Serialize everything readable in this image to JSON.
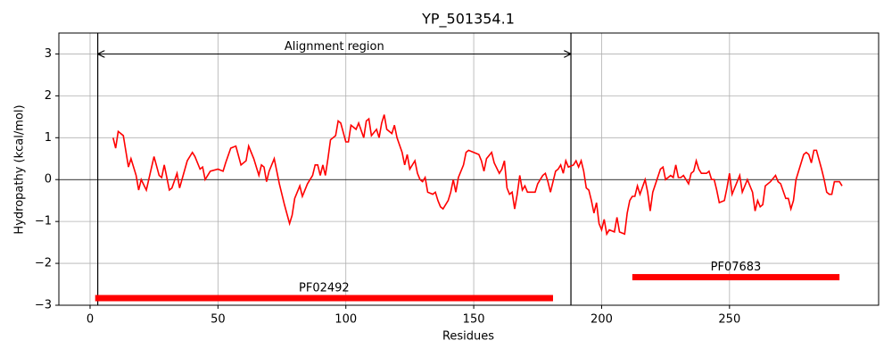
{
  "chart_data": {
    "type": "line",
    "title": "YP_501354.1",
    "xlabel": "Residues",
    "ylabel": "Hydropathy (kcal/mol)",
    "xlim": [
      -12.2,
      308.3
    ],
    "ylim": [
      -3,
      3.5
    ],
    "xticks": [
      0,
      50,
      100,
      150,
      200,
      250
    ],
    "yticks": [
      {
        "value": -3,
        "label": "−3"
      },
      {
        "value": -2,
        "label": "−2"
      },
      {
        "value": -1,
        "label": "−1"
      },
      0,
      1,
      2,
      3
    ],
    "grid": true,
    "hline": 0,
    "series": [
      {
        "color": "#ff0000",
        "x": [
          9,
          10,
          11,
          13,
          15,
          16,
          18,
          19,
          20,
          22,
          25,
          27,
          28,
          29,
          31,
          32,
          34,
          35,
          38,
          40,
          41,
          43,
          44,
          45,
          47,
          50,
          52,
          53,
          55,
          57,
          59,
          61,
          62,
          64,
          66,
          67,
          68,
          69,
          70,
          72,
          74,
          76,
          78,
          79,
          80,
          82,
          83,
          85,
          87,
          88,
          89,
          90,
          91,
          92,
          93,
          94,
          96,
          97,
          98,
          100,
          101,
          102,
          104,
          105,
          107,
          108,
          109,
          110,
          112,
          113,
          114,
          115,
          116,
          118,
          119,
          120,
          122,
          123,
          124,
          125,
          127,
          128,
          129,
          130,
          131,
          132,
          134,
          135,
          136,
          137,
          138,
          140,
          141,
          142,
          143,
          144,
          146,
          147,
          148,
          150,
          152,
          153,
          154,
          155,
          157,
          158,
          160,
          161,
          162,
          163,
          164,
          165,
          166,
          167,
          168,
          169,
          170,
          171,
          174,
          175,
          177,
          178,
          179,
          180,
          182,
          183,
          184,
          185,
          186,
          187,
          189,
          190,
          191,
          192,
          193,
          194,
          195,
          196,
          197,
          198,
          199,
          200,
          201,
          202,
          203,
          205,
          206,
          207,
          209,
          210,
          211,
          212,
          213,
          214,
          215,
          217,
          218,
          219,
          220,
          223,
          224,
          225,
          227,
          228,
          229,
          230,
          231,
          232,
          234,
          235,
          236,
          237,
          238,
          239,
          241,
          242,
          243,
          244,
          245,
          246,
          248,
          249,
          250,
          251,
          253,
          254,
          255,
          257,
          259,
          260,
          261,
          262,
          263,
          264,
          266,
          268,
          269,
          270,
          272,
          273,
          274,
          275,
          276,
          277,
          279,
          280,
          281,
          282,
          283,
          284,
          286,
          287,
          288,
          289,
          290,
          291,
          293,
          294
        ],
        "values": [
          1.0,
          0.75,
          1.15,
          1.05,
          0.3,
          0.5,
          0.1,
          -0.25,
          0,
          -0.25,
          0.55,
          0.1,
          0.05,
          0.35,
          -0.25,
          -0.2,
          0.15,
          -0.2,
          0.45,
          0.65,
          0.55,
          0.25,
          0.3,
          0,
          0.2,
          0.25,
          0.2,
          0.4,
          0.75,
          0.8,
          0.35,
          0.45,
          0.8,
          0.5,
          0.1,
          0.35,
          0.3,
          -0.05,
          0.2,
          0.5,
          -0.1,
          -0.6,
          -1.05,
          -0.85,
          -0.45,
          -0.15,
          -0.4,
          -0.1,
          0.1,
          0.35,
          0.35,
          0.1,
          0.35,
          0.1,
          0.5,
          0.95,
          1.05,
          1.4,
          1.35,
          0.9,
          0.9,
          1.3,
          1.2,
          1.35,
          1.0,
          1.4,
          1.45,
          1.05,
          1.2,
          1.0,
          1.35,
          1.55,
          1.2,
          1.1,
          1.3,
          1.0,
          0.65,
          0.35,
          0.6,
          0.25,
          0.45,
          0.15,
          0,
          -0.05,
          0.05,
          -0.3,
          -0.35,
          -0.3,
          -0.5,
          -0.65,
          -0.7,
          -0.5,
          -0.3,
          0,
          -0.3,
          0.05,
          0.35,
          0.65,
          0.7,
          0.65,
          0.6,
          0.45,
          0.2,
          0.5,
          0.65,
          0.4,
          0.15,
          0.25,
          0.45,
          -0.2,
          -0.35,
          -0.3,
          -0.7,
          -0.35,
          0.1,
          -0.25,
          -0.15,
          -0.3,
          -0.3,
          -0.1,
          0.1,
          0.15,
          -0.05,
          -0.3,
          0.2,
          0.25,
          0.35,
          0.15,
          0.45,
          0.3,
          0.35,
          0.45,
          0.3,
          0.45,
          0.2,
          -0.2,
          -0.25,
          -0.5,
          -0.8,
          -0.55,
          -1.05,
          -1.2,
          -0.95,
          -1.3,
          -1.2,
          -1.25,
          -0.9,
          -1.25,
          -1.3,
          -0.8,
          -0.5,
          -0.4,
          -0.4,
          -0.15,
          -0.35,
          0.0,
          -0.3,
          -0.75,
          -0.3,
          0.25,
          0.3,
          0,
          0.1,
          0.05,
          0.35,
          0.05,
          0.05,
          0.1,
          -0.1,
          0.15,
          0.2,
          0.45,
          0.25,
          0.15,
          0.15,
          0.2,
          0,
          0,
          -0.25,
          -0.55,
          -0.5,
          -0.2,
          0.15,
          -0.35,
          -0.05,
          0.1,
          -0.3,
          0,
          -0.3,
          -0.75,
          -0.5,
          -0.65,
          -0.6,
          -0.15,
          -0.05,
          0.1,
          -0.05,
          -0.1,
          -0.45,
          -0.45,
          -0.7,
          -0.5,
          0,
          0.2,
          0.6,
          0.65,
          0.6,
          0.4,
          0.7,
          0.7,
          0.25,
          0,
          -0.3,
          -0.35,
          -0.35,
          -0.05,
          -0.05,
          -0.15
        ]
      }
    ],
    "region": {
      "label": "Alignment region",
      "start": 3,
      "end": 188,
      "y": 3
    },
    "domains": [
      {
        "label": "PF02492",
        "start": 2,
        "end": 181,
        "y": -2.83,
        "color": "#ff0000"
      },
      {
        "label": "PF07683",
        "start": 212,
        "end": 293,
        "y": -2.33,
        "color": "#ff0000"
      }
    ]
  }
}
